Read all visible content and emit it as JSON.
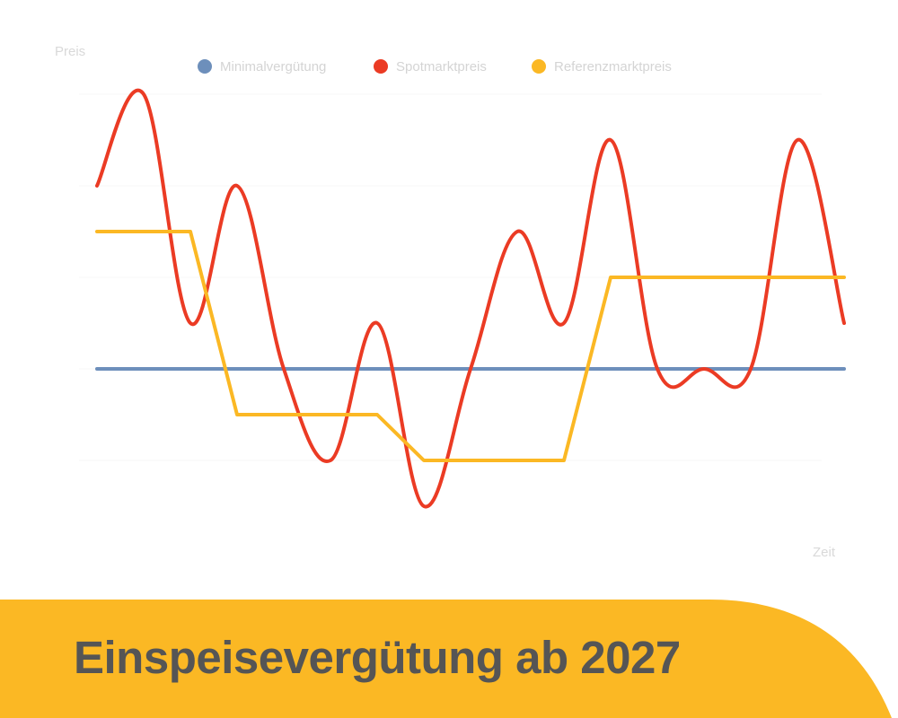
{
  "chart_data": {
    "type": "line",
    "ylabel": "Preis",
    "xlabel": "Zeit",
    "x": [
      0,
      1,
      2,
      3,
      4,
      5,
      6,
      7,
      8,
      9,
      10,
      11,
      12,
      13,
      14,
      15,
      16
    ],
    "xlim": [
      0,
      16
    ],
    "ylim": [
      -3,
      6
    ],
    "grid": true,
    "legend": "top-center",
    "series": [
      {
        "name": "Minimalvergütung",
        "color": "#6d8fbb",
        "values": [
          0,
          0,
          0,
          0,
          0,
          0,
          0,
          0,
          0,
          0,
          0,
          0,
          0,
          0,
          0,
          0,
          0
        ]
      },
      {
        "name": "Spotmarktpreis",
        "color": "#eb3b24",
        "values": [
          4,
          6,
          1,
          4,
          0,
          -2,
          1,
          -3,
          0,
          3,
          1,
          5,
          0,
          0,
          0,
          5,
          1
        ]
      },
      {
        "name": "Referenzmarktpreis",
        "color": "#fbb824",
        "values": [
          3,
          3,
          3,
          -1,
          -1,
          -1,
          -1,
          -2,
          -2,
          -2,
          -2,
          2,
          2,
          2,
          2,
          2,
          2
        ]
      }
    ]
  },
  "banner": {
    "title": "Einspeisevergütung ab 2027",
    "color": "#fbb824"
  }
}
